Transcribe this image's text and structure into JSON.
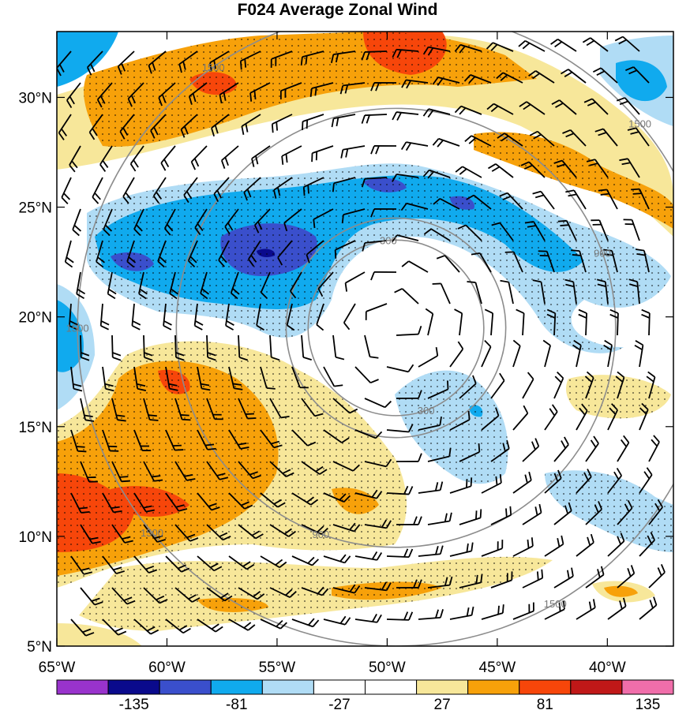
{
  "title": "F024 Average Zonal Wind",
  "map": {
    "lon_range": [
      -65,
      -37
    ],
    "lat_range": [
      5,
      33
    ],
    "x_ticks": [
      {
        "lon": -65,
        "label": "65°W"
      },
      {
        "lon": -60,
        "label": "60°W"
      },
      {
        "lon": -55,
        "label": "55°W"
      },
      {
        "lon": -50,
        "label": "50°W"
      },
      {
        "lon": -45,
        "label": "45°W"
      },
      {
        "lon": -40,
        "label": "40°W"
      }
    ],
    "y_ticks": [
      {
        "lat": 5,
        "label": "5°N"
      },
      {
        "lat": 10,
        "label": "10°N"
      },
      {
        "lat": 15,
        "label": "15°N"
      },
      {
        "lat": 20,
        "label": "20°N"
      },
      {
        "lat": 25,
        "label": "25°N"
      },
      {
        "lat": 30,
        "label": "30°N"
      }
    ],
    "range_rings": {
      "center_lon": -49.6,
      "center_lat": 19.5,
      "radius_deg_lat": [
        4.0,
        5.0,
        10.0,
        14.5
      ],
      "labels": [
        "300",
        "300",
        "900",
        "900",
        "1500",
        "1500",
        "1500",
        "1500",
        "1500",
        "1500"
      ],
      "color": "#8c8c8c"
    },
    "stipple": "dot pattern marks significant regions"
  },
  "colorbar": {
    "labels": [
      "-135",
      "-81",
      "-27",
      "27",
      "81",
      "135"
    ],
    "colors": [
      "#9933cc",
      "#0a0a8c",
      "#3a4fcc",
      "#10aaee",
      "#b0dcf5",
      "#ffffff",
      "#ffffff",
      "#f7e79a",
      "#f7a10a",
      "#f7460a",
      "#c01818",
      "#f06eaa"
    ]
  },
  "legend_colors": {
    "strong_negative": "#3a4fcc",
    "negative": "#10aaee",
    "weak_negative": "#b0dcf5",
    "weak_positive": "#f7e79a",
    "positive": "#f7a10a",
    "strong_positive": "#f7460a",
    "extreme_positive": "#c01818",
    "extreme_negative": "#0a0a8c"
  }
}
